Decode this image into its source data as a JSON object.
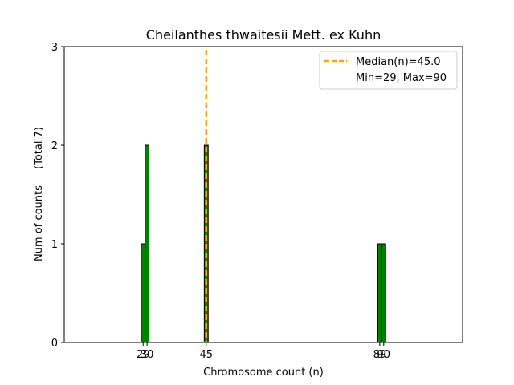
{
  "chart_data": {
    "type": "bar",
    "title": "Cheilanthes thwaitesii Mett. ex Kuhn",
    "xlabel": "Chromosome count (n)",
    "ylabel": "Num of counts",
    "ylabel_total": "(Total 7)",
    "x": [
      29,
      30,
      45,
      89,
      90
    ],
    "values": [
      1,
      2,
      2,
      1,
      1
    ],
    "xlim": [
      9,
      110
    ],
    "ylim": [
      0,
      3
    ],
    "xticks": [
      29,
      30,
      45,
      89,
      90
    ],
    "yticks": [
      0,
      1,
      2,
      3
    ],
    "bar_width": 1,
    "bar_color": "#008000",
    "bar_edge_color": "#000000",
    "median": 45.0,
    "median_color": "#FFA500",
    "legend": {
      "position": "top-right",
      "entries": [
        "Median(n)=45.0",
        "Min=29, Max=90"
      ]
    },
    "grid": false
  }
}
